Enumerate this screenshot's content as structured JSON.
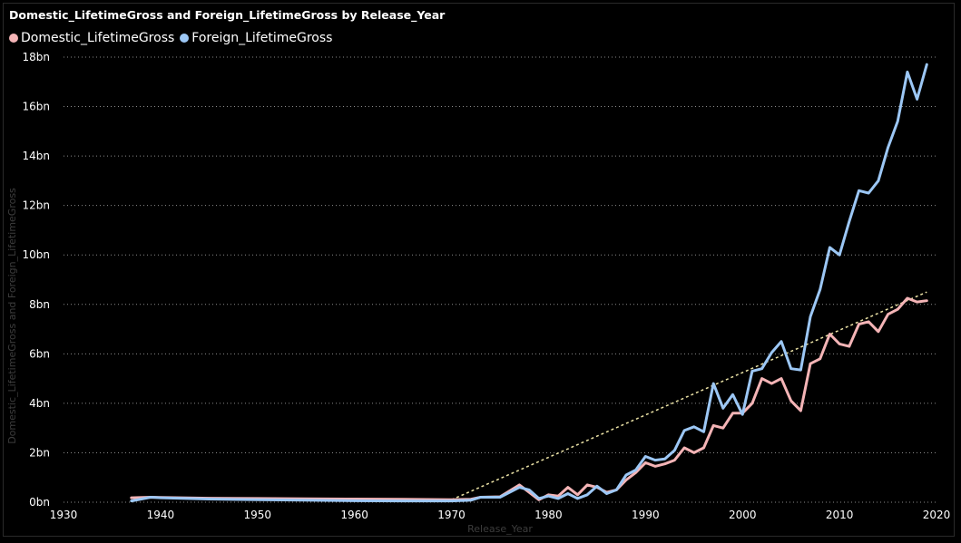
{
  "chart_data": {
    "type": "line",
    "title": "Domestic_LifetimeGross and Foreign_LifetimeGross by Release_Year",
    "xlabel": "Release_Year",
    "ylabel": "Domestic_LifetimeGross and Foreign_LifetimeGross",
    "xlim": [
      1930,
      2020
    ],
    "ylim": [
      0,
      18
    ],
    "x_ticks": [
      1930,
      1940,
      1950,
      1960,
      1970,
      1980,
      1990,
      2000,
      2010,
      2020
    ],
    "y_ticks": [
      {
        "value": 0,
        "label": "0bn"
      },
      {
        "value": 2,
        "label": "2bn"
      },
      {
        "value": 4,
        "label": "4bn"
      },
      {
        "value": 6,
        "label": "6bn"
      },
      {
        "value": 8,
        "label": "8bn"
      },
      {
        "value": 10,
        "label": "10bn"
      },
      {
        "value": 12,
        "label": "12bn"
      },
      {
        "value": 14,
        "label": "14bn"
      },
      {
        "value": 16,
        "label": "16bn"
      },
      {
        "value": 18,
        "label": "18bn"
      }
    ],
    "grid": "horizontal-dotted",
    "legend_position": "top-left",
    "series": [
      {
        "name": "Domestic_LifetimeGross",
        "color": "#f4b4b6",
        "points": [
          [
            1937,
            0.18
          ],
          [
            1939,
            0.2
          ],
          [
            1940,
            0.19
          ],
          [
            1945,
            0.16
          ],
          [
            1950,
            0.15
          ],
          [
            1955,
            0.14
          ],
          [
            1960,
            0.13
          ],
          [
            1965,
            0.12
          ],
          [
            1970,
            0.1
          ],
          [
            1972,
            0.12
          ],
          [
            1973,
            0.2
          ],
          [
            1975,
            0.22
          ],
          [
            1977,
            0.7
          ],
          [
            1978,
            0.4
          ],
          [
            1979,
            0.1
          ],
          [
            1980,
            0.3
          ],
          [
            1981,
            0.25
          ],
          [
            1982,
            0.6
          ],
          [
            1983,
            0.3
          ],
          [
            1984,
            0.7
          ],
          [
            1985,
            0.6
          ],
          [
            1986,
            0.4
          ],
          [
            1987,
            0.5
          ],
          [
            1988,
            0.9
          ],
          [
            1989,
            1.2
          ],
          [
            1990,
            1.6
          ],
          [
            1991,
            1.45
          ],
          [
            1992,
            1.55
          ],
          [
            1993,
            1.7
          ],
          [
            1994,
            2.2
          ],
          [
            1995,
            2.0
          ],
          [
            1996,
            2.2
          ],
          [
            1997,
            3.1
          ],
          [
            1998,
            3.0
          ],
          [
            1999,
            3.6
          ],
          [
            2000,
            3.6
          ],
          [
            2001,
            4.0
          ],
          [
            2002,
            5.0
          ],
          [
            2003,
            4.8
          ],
          [
            2004,
            5.0
          ],
          [
            2005,
            4.1
          ],
          [
            2006,
            3.7
          ],
          [
            2007,
            5.6
          ],
          [
            2008,
            5.8
          ],
          [
            2009,
            6.8
          ],
          [
            2010,
            6.4
          ],
          [
            2011,
            6.3
          ],
          [
            2012,
            7.2
          ],
          [
            2013,
            7.3
          ],
          [
            2014,
            6.9
          ],
          [
            2015,
            7.6
          ],
          [
            2016,
            7.8
          ],
          [
            2017,
            8.25
          ],
          [
            2018,
            8.1
          ],
          [
            2019,
            8.15
          ]
        ]
      },
      {
        "name": "Foreign_LifetimeGross",
        "color": "#9cc7f5",
        "points": [
          [
            1937,
            0.05
          ],
          [
            1939,
            0.2
          ],
          [
            1940,
            0.18
          ],
          [
            1945,
            0.13
          ],
          [
            1950,
            0.1
          ],
          [
            1955,
            0.08
          ],
          [
            1960,
            0.06
          ],
          [
            1965,
            0.05
          ],
          [
            1970,
            0.05
          ],
          [
            1972,
            0.08
          ],
          [
            1973,
            0.2
          ],
          [
            1975,
            0.2
          ],
          [
            1977,
            0.6
          ],
          [
            1978,
            0.5
          ],
          [
            1979,
            0.15
          ],
          [
            1980,
            0.25
          ],
          [
            1981,
            0.15
          ],
          [
            1982,
            0.35
          ],
          [
            1983,
            0.15
          ],
          [
            1984,
            0.3
          ],
          [
            1985,
            0.65
          ],
          [
            1986,
            0.35
          ],
          [
            1987,
            0.5
          ],
          [
            1988,
            1.1
          ],
          [
            1989,
            1.3
          ],
          [
            1990,
            1.85
          ],
          [
            1991,
            1.7
          ],
          [
            1992,
            1.75
          ],
          [
            1993,
            2.1
          ],
          [
            1994,
            2.9
          ],
          [
            1995,
            3.05
          ],
          [
            1996,
            2.85
          ],
          [
            1997,
            4.8
          ],
          [
            1998,
            3.8
          ],
          [
            1999,
            4.35
          ],
          [
            2000,
            3.55
          ],
          [
            2001,
            5.3
          ],
          [
            2002,
            5.4
          ],
          [
            2003,
            6.05
          ],
          [
            2004,
            6.5
          ],
          [
            2005,
            5.4
          ],
          [
            2006,
            5.35
          ],
          [
            2007,
            7.5
          ],
          [
            2008,
            8.6
          ],
          [
            2009,
            10.3
          ],
          [
            2010,
            10.0
          ],
          [
            2011,
            11.35
          ],
          [
            2012,
            12.6
          ],
          [
            2013,
            12.5
          ],
          [
            2014,
            13.0
          ],
          [
            2015,
            14.35
          ],
          [
            2016,
            15.4
          ],
          [
            2017,
            17.4
          ],
          [
            2018,
            16.3
          ],
          [
            2019,
            17.7
          ]
        ]
      }
    ],
    "trend_line": {
      "color": "#ece3a6",
      "style": "dashed",
      "points": [
        [
          1970,
          0.1
        ],
        [
          2019,
          8.5
        ]
      ]
    }
  }
}
